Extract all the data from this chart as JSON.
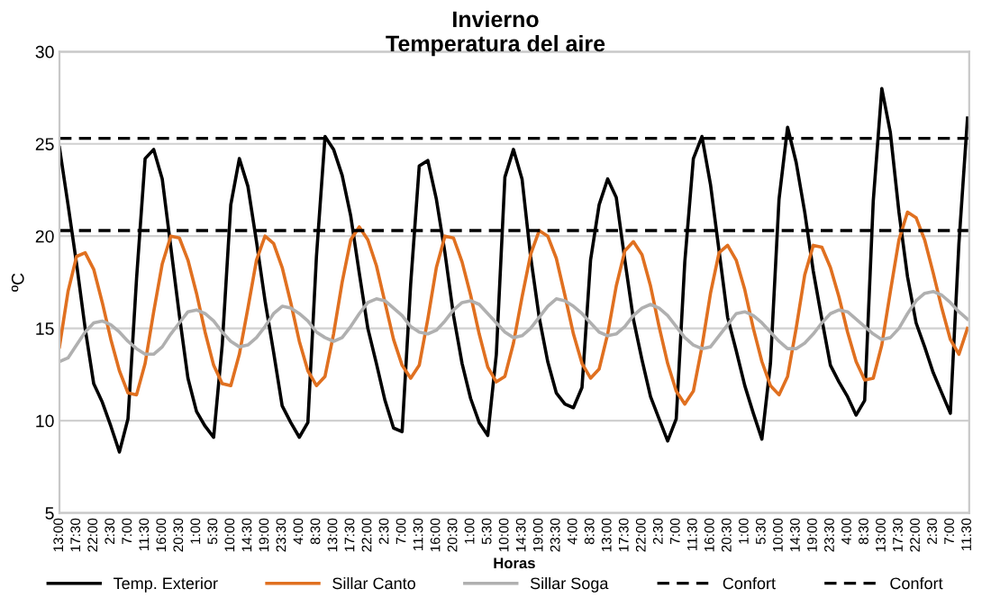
{
  "chart_data": {
    "type": "line",
    "title": "Invierno",
    "subtitle": "Temperatura del aire",
    "xlabel": "Horas",
    "ylabel": "ºC",
    "ylim": [
      5,
      30
    ],
    "yticks": [
      5,
      10,
      15,
      20,
      25,
      30
    ],
    "grid": "y",
    "legend": "bottom",
    "marker": "none",
    "categories": [
      "13:00",
      null,
      "17:30",
      null,
      "22:00",
      null,
      "2:30",
      null,
      "7:00",
      null,
      "11:30",
      null,
      "16:00",
      null,
      "20:30",
      null,
      "1:00",
      null,
      "5:30",
      null,
      "10:00",
      null,
      "14:30",
      null,
      "19:00",
      null,
      "23:30",
      null,
      "4:00",
      null,
      "8:30",
      null,
      "13:00",
      null,
      "17:30",
      null,
      "22:00",
      null,
      "2:30",
      null,
      "7:00",
      null,
      "11:30",
      null,
      "16:00",
      null,
      "20:30",
      null,
      "1:00",
      null,
      "5:30",
      null,
      "10:00",
      null,
      "14:30",
      null,
      "19:00",
      null,
      "23:30",
      null,
      "4:00",
      null,
      "8:30",
      null,
      "13:00",
      null,
      "17:30",
      null,
      "22:00",
      null,
      "2:30",
      null,
      "7:00",
      null,
      "11:30",
      null,
      "16:00",
      null,
      "20:30",
      null,
      "1:00",
      null,
      "5:30",
      null,
      "10:00",
      null,
      "14:30",
      null,
      "19:00",
      null,
      "23:30",
      null,
      "4:00",
      null,
      "8:30",
      null,
      "13:00",
      null,
      "17:30",
      null,
      "22:00",
      null,
      "2:30",
      null,
      "7:00",
      null,
      "11:30"
    ],
    "series": [
      {
        "name": "Temp. Exterior",
        "color": "#000000",
        "values": [
          24.8,
          21.7,
          18.5,
          15.0,
          12.0,
          11.0,
          9.7,
          8.3,
          10.1,
          17.7,
          24.2,
          24.7,
          23.1,
          19.4,
          15.7,
          12.3,
          10.5,
          9.7,
          9.1,
          14.1,
          21.7,
          24.2,
          22.7,
          19.7,
          16.5,
          13.7,
          10.8,
          9.9,
          9.1,
          9.9,
          18.9,
          25.4,
          24.7,
          23.3,
          21.1,
          18.0,
          15.0,
          13.1,
          11.1,
          9.6,
          9.4,
          17.4,
          23.8,
          24.1,
          22.0,
          19.1,
          15.7,
          13.1,
          11.2,
          9.9,
          9.2,
          13.6,
          23.2,
          24.7,
          23.1,
          18.9,
          15.6,
          13.2,
          11.5,
          10.9,
          10.7,
          11.8,
          18.7,
          21.7,
          23.1,
          22.1,
          18.7,
          15.5,
          13.3,
          11.3,
          10.1,
          8.9,
          10.1,
          18.6,
          24.2,
          25.4,
          22.8,
          19.2,
          15.6,
          13.8,
          11.9,
          10.4,
          9.0,
          13.1,
          22.0,
          25.9,
          24.0,
          21.3,
          18.1,
          15.5,
          13.0,
          12.1,
          11.3,
          10.3,
          11.1,
          21.9,
          28.0,
          25.6,
          21.3,
          17.8,
          15.3,
          14.0,
          12.6,
          11.5,
          10.4,
          19.6,
          26.4
        ]
      },
      {
        "name": "Sillar Canto",
        "color": "#e07020",
        "values": [
          14.0,
          17.0,
          18.9,
          19.1,
          18.2,
          16.4,
          14.4,
          12.7,
          11.5,
          11.4,
          13.1,
          15.9,
          18.5,
          20.0,
          19.9,
          18.7,
          16.9,
          14.8,
          13.0,
          12.0,
          11.9,
          13.6,
          16.1,
          18.7,
          20.0,
          19.6,
          18.3,
          16.4,
          14.3,
          12.7,
          11.9,
          12.4,
          14.7,
          17.5,
          19.8,
          20.5,
          19.8,
          18.4,
          16.4,
          14.4,
          13.0,
          12.3,
          13.0,
          15.5,
          18.3,
          20.0,
          19.9,
          18.6,
          16.8,
          14.7,
          12.9,
          12.1,
          12.4,
          14.2,
          16.7,
          19.0,
          20.3,
          20.0,
          18.8,
          16.8,
          14.7,
          13.1,
          12.3,
          12.8,
          14.7,
          17.3,
          19.2,
          19.7,
          19.0,
          17.3,
          15.1,
          13.1,
          11.6,
          10.9,
          11.6,
          14.0,
          16.9,
          19.1,
          19.5,
          18.7,
          17.1,
          15.0,
          13.2,
          11.9,
          11.4,
          12.4,
          15.0,
          17.9,
          19.5,
          19.4,
          18.3,
          16.7,
          14.8,
          13.2,
          12.2,
          12.3,
          14.1,
          17.0,
          19.8,
          21.3,
          21.0,
          19.8,
          18.0,
          16.1,
          14.4,
          13.6,
          15.0
        ]
      },
      {
        "name": "Sillar Soga",
        "color": "#b0b0b0",
        "values": [
          13.2,
          13.4,
          14.1,
          14.8,
          15.3,
          15.4,
          15.2,
          14.8,
          14.3,
          13.9,
          13.6,
          13.6,
          14.0,
          14.7,
          15.3,
          15.9,
          16.0,
          15.8,
          15.4,
          14.8,
          14.3,
          14.0,
          14.1,
          14.5,
          15.1,
          15.8,
          16.2,
          16.1,
          15.8,
          15.4,
          14.8,
          14.5,
          14.3,
          14.5,
          15.1,
          15.8,
          16.4,
          16.6,
          16.5,
          16.1,
          15.7,
          15.1,
          14.8,
          14.7,
          14.9,
          15.4,
          16.0,
          16.4,
          16.5,
          16.3,
          15.8,
          15.3,
          14.8,
          14.5,
          14.6,
          15.0,
          15.6,
          16.2,
          16.6,
          16.5,
          16.2,
          15.8,
          15.3,
          14.8,
          14.6,
          14.7,
          15.1,
          15.7,
          16.1,
          16.3,
          16.1,
          15.7,
          15.1,
          14.5,
          14.1,
          13.9,
          14.0,
          14.6,
          15.2,
          15.8,
          15.9,
          15.7,
          15.3,
          14.8,
          14.3,
          13.9,
          13.9,
          14.2,
          14.7,
          15.3,
          15.8,
          16.0,
          15.9,
          15.5,
          15.1,
          14.7,
          14.4,
          14.5,
          15.0,
          15.8,
          16.5,
          16.9,
          17.0,
          16.8,
          16.4,
          15.9,
          15.5
        ]
      }
    ],
    "ref_lines": [
      {
        "axis": "y",
        "value": 25.3,
        "label": "Confort",
        "color": "#000000",
        "line_style": "dashed"
      },
      {
        "axis": "y",
        "value": 20.3,
        "label": "Confort",
        "color": "#000000",
        "line_style": "dashed"
      }
    ]
  }
}
